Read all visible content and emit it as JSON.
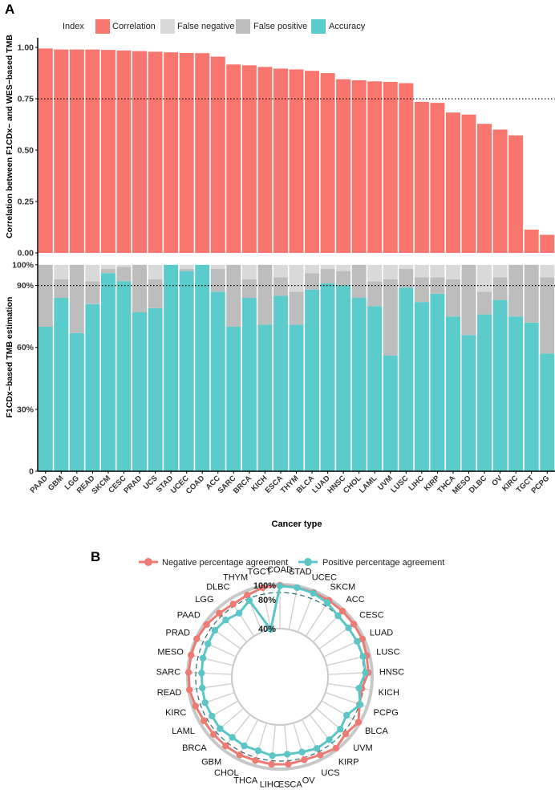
{
  "panel_a": {
    "label": "A",
    "legend": {
      "title": "Index",
      "items": [
        {
          "name": "Correlation",
          "color": "#F8766D"
        },
        {
          "name": "False negative",
          "color": "#D9D9D9"
        },
        {
          "name": "False positive",
          "color": "#BDBDBD"
        },
        {
          "name": "Accuracy",
          "color": "#5CCBCB"
        }
      ]
    },
    "xlabel": "Cancer type"
  },
  "panel_b": {
    "label": "B",
    "legend": [
      {
        "name": "Negative percentage agreement",
        "color": "#EE7B73"
      },
      {
        "name": "Positive percentage agreement",
        "color": "#5CC6C6"
      }
    ]
  },
  "chart_data": [
    {
      "type": "bar",
      "id": "correlation",
      "title": "",
      "ylabel": "Correlation between F1CDx− and WES−based TMB",
      "xlabel": "",
      "ylim": [
        0,
        1.0
      ],
      "yticks": [
        "0.00",
        "0.25",
        "0.50",
        "0.75",
        "1.00"
      ],
      "reference_line": 0.75,
      "categories": [
        "PAAD",
        "GBM",
        "LGG",
        "READ",
        "SKCM",
        "CESC",
        "PRAD",
        "UCS",
        "STAD",
        "UCEC",
        "COAD",
        "ACC",
        "SARC",
        "BRCA",
        "KICH",
        "ESCA",
        "THYM",
        "BLCA",
        "LUAD",
        "HNSC",
        "CHOL",
        "LAML",
        "UVM",
        "LUSC",
        "LIHC",
        "KIRP",
        "THCA",
        "MESO",
        "DLBC",
        "OV",
        "KIRC",
        "TGCT",
        "PCPG"
      ],
      "values": [
        0.995,
        0.99,
        0.99,
        0.99,
        0.988,
        0.985,
        0.982,
        0.979,
        0.976,
        0.973,
        0.972,
        0.955,
        0.917,
        0.913,
        0.905,
        0.897,
        0.893,
        0.886,
        0.875,
        0.845,
        0.84,
        0.835,
        0.832,
        0.826,
        0.735,
        0.73,
        0.683,
        0.673,
        0.628,
        0.6,
        0.572,
        0.113,
        0.088
      ],
      "color": "#F8766D"
    },
    {
      "type": "bar",
      "id": "accuracy",
      "ylabel": "F1CDx−based TMB estimation",
      "xlabel": "Cancer type",
      "ylim": [
        0,
        100
      ],
      "yticks": [
        "0",
        "30%",
        "60%",
        "90%",
        "100%"
      ],
      "ytick_values": [
        0,
        30,
        60,
        90,
        100
      ],
      "reference_line": 90,
      "categories": [
        "PAAD",
        "GBM",
        "LGG",
        "READ",
        "SKCM",
        "CESC",
        "PRAD",
        "UCS",
        "STAD",
        "UCEC",
        "COAD",
        "ACC",
        "SARC",
        "BRCA",
        "KICH",
        "ESCA",
        "THYM",
        "BLCA",
        "LUAD",
        "HNSC",
        "CHOL",
        "LAML",
        "UVM",
        "LUSC",
        "LIHC",
        "KIRP",
        "THCA",
        "MESO",
        "DLBC",
        "OV",
        "KIRC",
        "TGCT",
        "PCPG"
      ],
      "series": [
        {
          "name": "Accuracy",
          "color": "#5CCBCB",
          "values": [
            70,
            84,
            67,
            81,
            96,
            92,
            77,
            79,
            100,
            97,
            100,
            87,
            70,
            84,
            71,
            85,
            71,
            88,
            91,
            90,
            84,
            80,
            56,
            89,
            82,
            86,
            75,
            66,
            76,
            83,
            75,
            72,
            57
          ]
        },
        {
          "name": "False positive",
          "color": "#BDBDBD",
          "values": [
            30,
            9,
            33,
            11,
            2,
            7,
            23,
            14,
            0,
            1,
            0,
            11,
            30,
            9,
            29,
            9,
            16,
            8,
            7,
            7,
            16,
            12,
            37,
            9,
            12,
            8,
            18,
            34,
            11,
            11,
            25,
            28,
            37
          ]
        },
        {
          "name": "False negative",
          "color": "#D9D9D9",
          "values": [
            0,
            7,
            0,
            8,
            2,
            1,
            0,
            7,
            0,
            2,
            0,
            2,
            0,
            7,
            0,
            6,
            13,
            4,
            2,
            3,
            0,
            8,
            7,
            2,
            6,
            6,
            7,
            0,
            13,
            6,
            0,
            0,
            6
          ]
        }
      ]
    },
    {
      "type": "radar",
      "id": "agreement",
      "categories": [
        "COAD",
        "STAD",
        "UCEC",
        "SKCM",
        "ACC",
        "CESC",
        "LUAD",
        "LUSC",
        "HNSC",
        "KICH",
        "PCPG",
        "BLCA",
        "UVM",
        "KIRP",
        "UCS",
        "OV",
        "ESCA",
        "LIHC",
        "THCA",
        "CHOL",
        "GBM",
        "BRCA",
        "LAML",
        "KIRC",
        "READ",
        "SARC",
        "MESO",
        "PRAD",
        "PAAD",
        "LGG",
        "DLBC",
        "THYM",
        "TGCT"
      ],
      "radial_ticks": [
        "40%",
        "80%",
        "100%"
      ],
      "radial_tick_values": [
        40,
        80,
        100
      ],
      "reference_circle": 90,
      "rlim": [
        40,
        100
      ],
      "series": [
        {
          "name": "Negative percentage agreement",
          "color": "#EE7B73",
          "values": [
            100,
            99,
            99,
            99,
            99,
            99,
            99,
            97,
            96,
            88,
            90,
            99,
            94,
            99,
            95,
            93,
            95,
            95,
            94,
            95,
            95,
            95,
            95,
            97,
            100,
            100,
            100,
            100,
            98,
            95,
            93,
            95,
            99
          ]
        },
        {
          "name": "Positive percentage agreement",
          "color": "#5CC6C6",
          "values": [
            99,
            99,
            98,
            95,
            90,
            90,
            91,
            92,
            92,
            84,
            91,
            80,
            84,
            84,
            85,
            82,
            81,
            83,
            80,
            81,
            80,
            83,
            82,
            83,
            82,
            82,
            83,
            83,
            84,
            82,
            78,
            87,
            40
          ]
        }
      ]
    }
  ]
}
